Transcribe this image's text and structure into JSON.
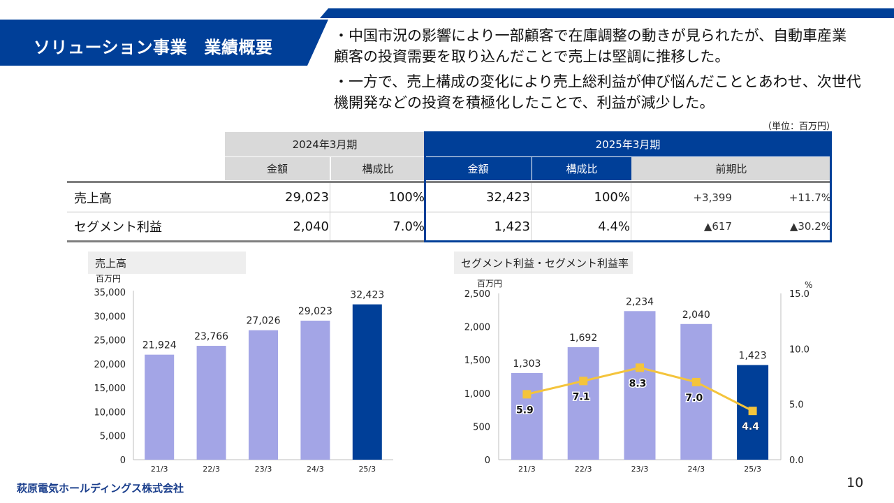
{
  "header": {
    "title": "ソリューション事業　業績概要",
    "bullets": [
      "・中国市況の影響により一部顧客で在庫調整の動きが見られたが、自動車産業",
      "顧客の投資需要を取り込んだことで売上は堅調に推移した。",
      "・一方で、売上構成の変化により売上総利益が伸び悩んだこととあわせ、次世代",
      "機開発などの投資を積極化したことで、利益が減少した。"
    ],
    "colors": {
      "brand_blue": "#003f98",
      "light_bar": "#a3a5e6",
      "line_yellow": "#f4c43c"
    }
  },
  "table": {
    "unit": "（単位：百万円）",
    "period_prev": "2024年3月期",
    "period_curr": "2025年3月期",
    "col_amount": "金額",
    "col_ratio": "構成比",
    "col_yoy": "前期比",
    "rows": [
      {
        "label": "売上高",
        "prev_amount": "29,023",
        "prev_ratio": "100%",
        "curr_amount": "32,423",
        "curr_ratio": "100%",
        "yoy_amount": "+3,399",
        "yoy_pct": "+11.7%"
      },
      {
        "label": "セグメント利益",
        "prev_amount": "2,040",
        "prev_ratio": "7.0%",
        "curr_amount": "1,423",
        "curr_ratio": "4.4%",
        "yoy_amount": "▲617",
        "yoy_pct": "▲30.2%"
      }
    ]
  },
  "chart_data": [
    {
      "type": "bar",
      "title": "売上高",
      "ylabel": "百万円",
      "categories": [
        "21/3",
        "22/3",
        "23/3",
        "24/3",
        "25/3"
      ],
      "values": [
        21924,
        23766,
        27026,
        29023,
        32423
      ],
      "value_labels": [
        "21,924",
        "23,766",
        "27,026",
        "29,023",
        "32,423"
      ],
      "ylim": [
        0,
        35000
      ],
      "yticks": [
        "0",
        "5,000",
        "10,000",
        "15,000",
        "20,000",
        "25,000",
        "30,000",
        "35,000"
      ],
      "highlight_last": true
    },
    {
      "type": "bar",
      "title": "セグメント利益・セグメント利益率",
      "ylabel": "百万円",
      "y2label": "%",
      "categories": [
        "21/3",
        "22/3",
        "23/3",
        "24/3",
        "25/3"
      ],
      "values": [
        1303,
        1692,
        2234,
        2040,
        1423
      ],
      "value_labels": [
        "1,303",
        "1,692",
        "2,234",
        "2,040",
        "1,423"
      ],
      "line_values": [
        5.9,
        7.1,
        8.3,
        7.0,
        4.4
      ],
      "line_labels": [
        "5.9",
        "7.1",
        "8.3",
        "7.0",
        "4.4"
      ],
      "ylim": [
        0,
        2500
      ],
      "y2lim": [
        0,
        15
      ],
      "yticks": [
        "0",
        "500",
        "1,000",
        "1,500",
        "2,000",
        "2,500"
      ],
      "y2ticks": [
        "0.0",
        "5.0",
        "10.0",
        "15.0"
      ],
      "highlight_last": true
    }
  ],
  "footer": {
    "company": "萩原電気ホールディングス株式会社",
    "page": "10"
  }
}
